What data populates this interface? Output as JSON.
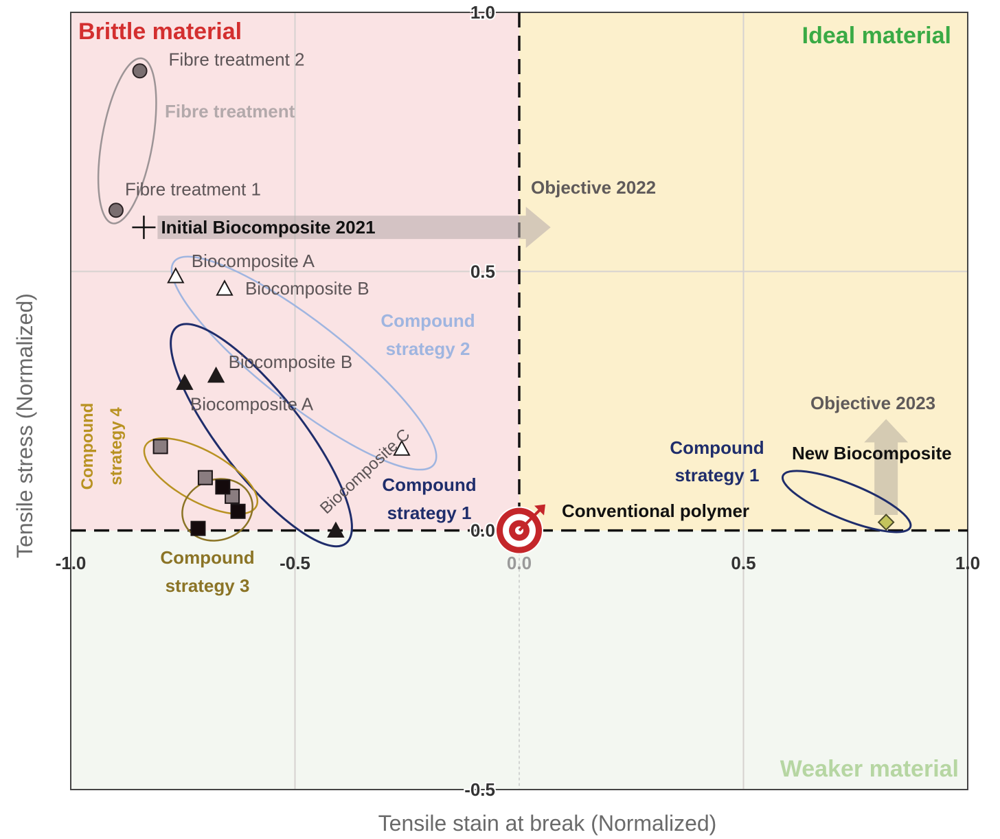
{
  "chart_data": {
    "type": "scatter",
    "title": "",
    "xlabel": "Tensile stain at break (Normalized)",
    "ylabel": "Tensile stress (Normalized)",
    "xlim": [
      -1.0,
      1.0
    ],
    "ylim": [
      -0.5,
      1.0
    ],
    "grid": true,
    "x_ticks": [
      {
        "value": -1.0,
        "label": "-1.0"
      },
      {
        "value": -0.5,
        "label": "-0.5"
      },
      {
        "value": 0.0,
        "label": "0.0"
      },
      {
        "value": 0.5,
        "label": "0.5"
      },
      {
        "value": 1.0,
        "label": "1.0"
      }
    ],
    "y_ticks": [
      {
        "value": 1.0,
        "label": "1.0"
      },
      {
        "value": 0.5,
        "label": "0.5"
      },
      {
        "value": 0.0,
        "label": "0.0"
      },
      {
        "value": -0.5,
        "label": "-0.5"
      }
    ],
    "regions": [
      {
        "label": "Brittle material",
        "x": [
          -1.0,
          0.0
        ],
        "y": [
          0.0,
          1.0
        ],
        "fill": "#fae3e4",
        "text_color": "#d32f2f"
      },
      {
        "label": "Ideal material",
        "x": [
          0.0,
          1.0
        ],
        "y": [
          0.0,
          1.0
        ],
        "fill": "#fcf0cc",
        "text_color": "#3aaa45"
      },
      {
        "label": "Weaker material",
        "x": [
          -1.0,
          1.0
        ],
        "y": [
          -0.5,
          0.0
        ],
        "fill": "#f3f7f1",
        "text_color": "#b6d6a2"
      }
    ],
    "series": [
      {
        "name": "Fibre treatment",
        "marker": "circle",
        "color": "#7a6e70",
        "points": [
          {
            "x": -0.846,
            "y": 0.887,
            "label": "Fibre treatment 2"
          },
          {
            "x": -0.899,
            "y": 0.618,
            "label": "Fibre treatment 1"
          }
        ]
      },
      {
        "name": "Initial Biocomposite 2021",
        "marker": "cross",
        "color": "#111111",
        "points": [
          {
            "x": -0.837,
            "y": 0.585,
            "label": "Initial Biocomposite 2021"
          }
        ]
      },
      {
        "name": "Compound strategy 2",
        "marker": "triangle-open",
        "color": "#ae9ca0",
        "points": [
          {
            "x": -0.766,
            "y": 0.491,
            "label": "Biocomposite  A"
          },
          {
            "x": -0.657,
            "y": 0.467,
            "label": "Biocomposite B"
          },
          {
            "x": -0.262,
            "y": 0.158,
            "label": "Biocomposite C"
          }
        ]
      },
      {
        "name": "Compound strategy 1",
        "marker": "triangle-filled",
        "color": "#1e1a1a",
        "points": [
          {
            "x": -0.746,
            "y": 0.285,
            "label": "Biocomposite A"
          },
          {
            "x": -0.676,
            "y": 0.299,
            "label": "Biocomposite B"
          },
          {
            "x": -0.409,
            "y": 0.0,
            "label": ""
          }
        ]
      },
      {
        "name": "Compound strategy 4",
        "marker": "square-gray",
        "color": "#8a7d80",
        "points": [
          {
            "x": -0.8,
            "y": 0.162
          },
          {
            "x": -0.7,
            "y": 0.102
          },
          {
            "x": -0.64,
            "y": 0.066
          }
        ]
      },
      {
        "name": "Compound strategy 3",
        "marker": "square-black",
        "color": "#140a0c",
        "points": [
          {
            "x": -0.661,
            "y": 0.084
          },
          {
            "x": -0.627,
            "y": 0.037
          },
          {
            "x": -0.716,
            "y": 0.004
          }
        ]
      },
      {
        "name": "New Biocomposite",
        "marker": "diamond",
        "color": "#c3c45c",
        "points": [
          {
            "x": 0.818,
            "y": 0.016,
            "label": "New Biocomposite"
          }
        ]
      },
      {
        "name": "Conventional polymer",
        "marker": "target",
        "color": "#c4262a",
        "points": [
          {
            "x": 0.0,
            "y": 0.0,
            "label": "Conventional polymer"
          }
        ]
      }
    ],
    "annotations": [
      {
        "text": "Fibre treatment",
        "color": "#b3a9ab"
      },
      {
        "text": "Compound strategy 2",
        "lines": [
          "Compound",
          "strategy 2"
        ],
        "color": "#9fb5e0"
      },
      {
        "text": "Compound strategy 1",
        "lines": [
          "Compound",
          "strategy 1"
        ],
        "color": "#1f2d6b"
      },
      {
        "text": "Compound strategy 1",
        "lines": [
          "Compound",
          "strategy 1"
        ],
        "color": "#1f2d6b"
      },
      {
        "text": "Compound strategy 3",
        "lines": [
          "Compound",
          "strategy 3"
        ],
        "color": "#8b7426"
      },
      {
        "text": "Compound strategy 4",
        "lines": [
          "Compound",
          "strategy 4"
        ],
        "color": "#b89222"
      },
      {
        "text": "Objective 2022",
        "color": "#5f5a5a"
      },
      {
        "text": "Objective 2023",
        "color": "#5f5a5a"
      }
    ]
  }
}
